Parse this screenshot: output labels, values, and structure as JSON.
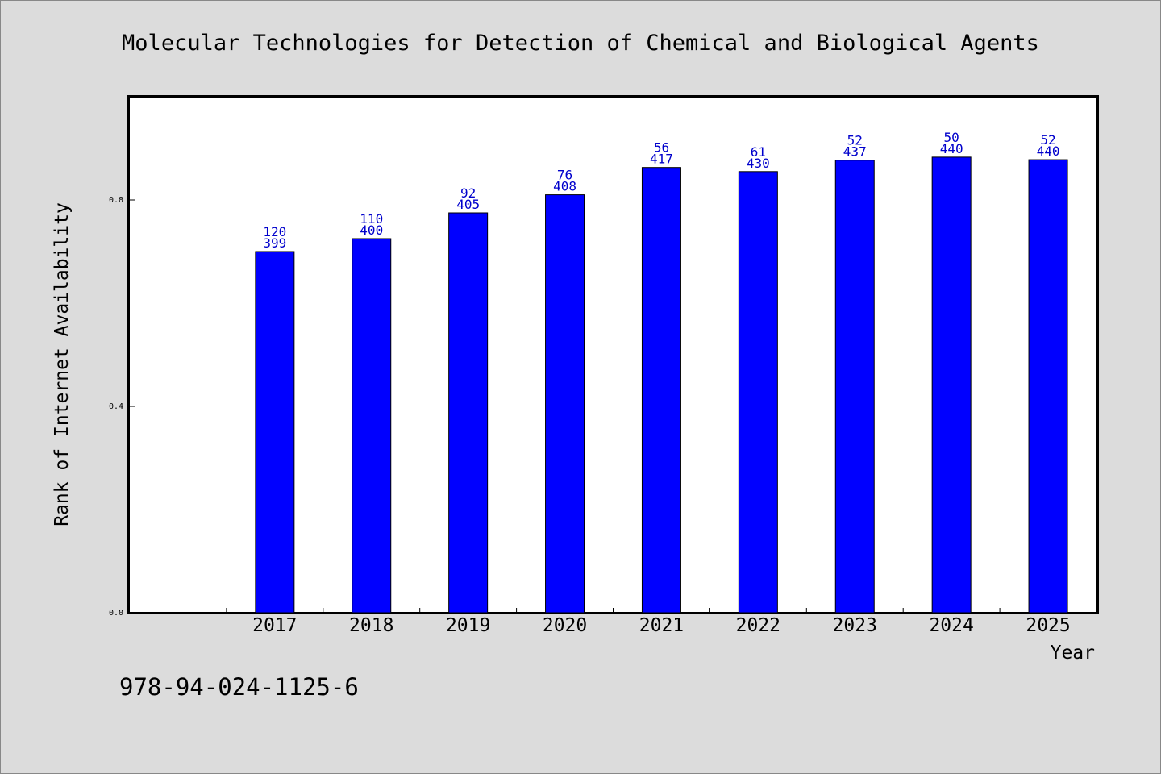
{
  "chart_data": {
    "type": "bar",
    "title": "Molecular Technologies for Detection of Chemical and Biological Agents",
    "xlabel": "Year",
    "ylabel": "Rank of Internet Availability",
    "categories": [
      "",
      "2017",
      "2018",
      "2019",
      "2020",
      "2021",
      "2022",
      "2023",
      "2024",
      "2025"
    ],
    "values": [
      null,
      0.7,
      0.725,
      0.775,
      0.81,
      0.863,
      0.855,
      0.877,
      0.883,
      0.878
    ],
    "bar_labels_top": [
      "",
      "120",
      "110",
      "92",
      "76",
      "56",
      "61",
      "52",
      "50",
      "52"
    ],
    "bar_labels_bottom": [
      "",
      "399",
      "400",
      "405",
      "408",
      "417",
      "430",
      "437",
      "440",
      "440"
    ],
    "yticks": [
      0.0,
      0.4,
      0.8
    ],
    "ytick_labels": [
      "0.0",
      "0.4",
      "0.8"
    ],
    "ylim": [
      0,
      1.0
    ],
    "bar_color": "#0000ff",
    "label_color": "#0000cc",
    "grid": false
  },
  "footer": {
    "isbn": "978-94-024-1125-6"
  }
}
